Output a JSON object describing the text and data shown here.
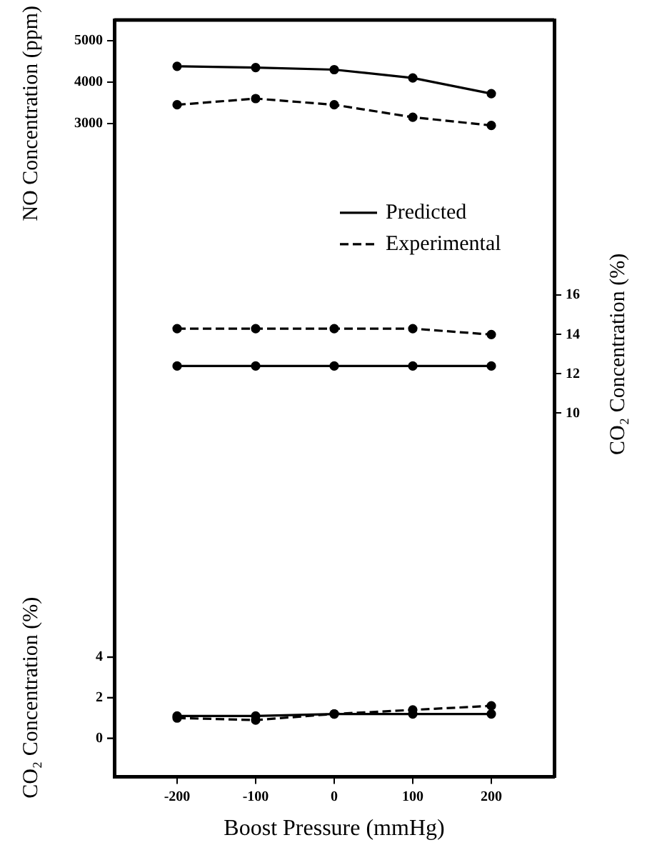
{
  "chart_data": {
    "type": "line",
    "xlabel": "Boost Pressure (mmHg)",
    "ylabel": "NO Concentration (ppm)",
    "y2label": "CO₂ Concentration (%)",
    "y3label": "CO₂ Concentration (%)",
    "x": [
      -200,
      -100,
      0,
      100,
      200
    ],
    "xlim": [
      -280,
      280
    ],
    "xticks": [
      -200,
      -100,
      0,
      100,
      200
    ],
    "ylim": [
      -12800,
      5500
    ],
    "yticks": [
      3000,
      4000,
      5000
    ],
    "y2lim": [
      -8.5,
      30
    ],
    "y2ticks": [
      10,
      12,
      14,
      16
    ],
    "y3lim": [
      -1.9,
      35.4
    ],
    "y3ticks": [
      0,
      2,
      4
    ],
    "grid": false,
    "legend": "right",
    "marker": "circle",
    "series": [
      {
        "name": "Predicted",
        "color": "#000000",
        "line_style": "solid",
        "axis": "y",
        "values": [
          4380,
          4350,
          4300,
          4100,
          3720
        ]
      },
      {
        "name": "Experimental",
        "color": "#000000",
        "line_style": "dashed",
        "axis": "y",
        "values": [
          3450,
          3600,
          3450,
          3150,
          2950
        ]
      },
      {
        "color": "#000000",
        "line_style": "solid",
        "axis": "y2",
        "values": [
          12.4,
          12.4,
          12.4,
          12.4,
          12.4
        ]
      },
      {
        "color": "#000000",
        "line_style": "dashed",
        "axis": "y2",
        "values": [
          14.3,
          14.3,
          14.3,
          14.3,
          14.0
        ]
      },
      {
        "color": "#000000",
        "line_style": "solid",
        "axis": "y3",
        "values": [
          1.1,
          1.1,
          1.2,
          1.2,
          1.2
        ]
      },
      {
        "color": "#000000",
        "line_style": "dashed",
        "axis": "y3",
        "values": [
          1.0,
          0.9,
          1.2,
          1.4,
          1.6
        ]
      }
    ]
  }
}
